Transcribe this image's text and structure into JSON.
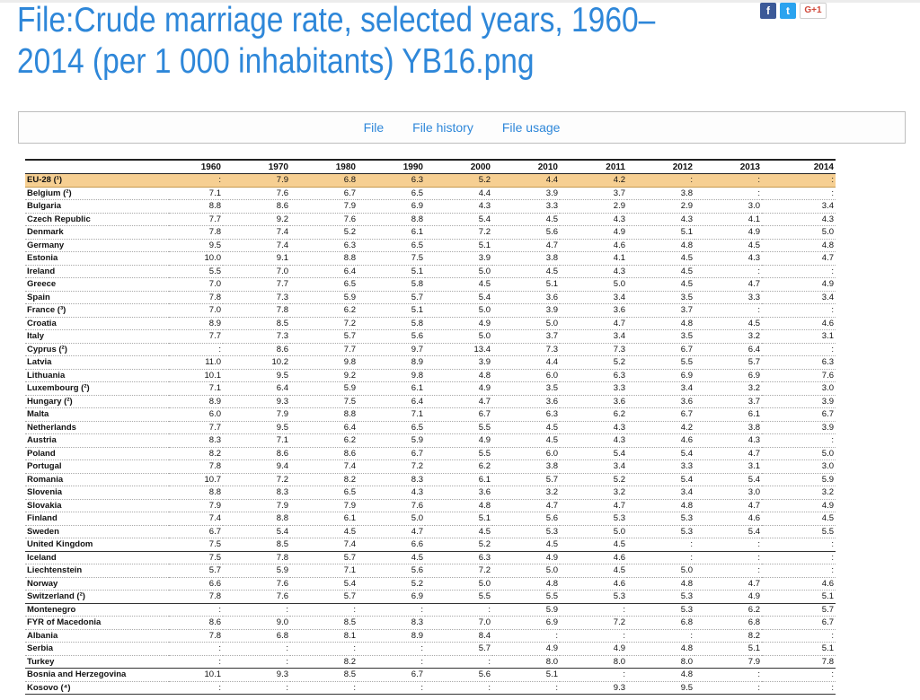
{
  "page": {
    "title": "File:Crude marriage rate, selected years, 1960–2014 (per 1 000 inhabitants) YB16.png",
    "title_color": "#2e87d9"
  },
  "share": {
    "facebook": "f",
    "twitter": "t",
    "gplus": "G+1"
  },
  "tabs": [
    "File",
    "File history",
    "File usage"
  ],
  "table": {
    "corner": "",
    "years": [
      "1960",
      "1970",
      "1980",
      "1990",
      "2000",
      "2010",
      "2011",
      "2012",
      "2013",
      "2014"
    ],
    "rows": [
      {
        "country": "EU-28 (¹)",
        "values": [
          ":",
          "7.9",
          "6.8",
          "6.3",
          "5.2",
          "4.4",
          "4.2",
          ":",
          ":",
          ":"
        ],
        "highlight": true
      },
      {
        "country": "Belgium (²)",
        "values": [
          "7.1",
          "7.6",
          "6.7",
          "6.5",
          "4.4",
          "3.9",
          "3.7",
          "3.8",
          ":",
          ":"
        ]
      },
      {
        "country": "Bulgaria",
        "values": [
          "8.8",
          "8.6",
          "7.9",
          "6.9",
          "4.3",
          "3.3",
          "2.9",
          "2.9",
          "3.0",
          "3.4"
        ]
      },
      {
        "country": "Czech Republic",
        "values": [
          "7.7",
          "9.2",
          "7.6",
          "8.8",
          "5.4",
          "4.5",
          "4.3",
          "4.3",
          "4.1",
          "4.3"
        ]
      },
      {
        "country": "Denmark",
        "values": [
          "7.8",
          "7.4",
          "5.2",
          "6.1",
          "7.2",
          "5.6",
          "4.9",
          "5.1",
          "4.9",
          "5.0"
        ]
      },
      {
        "country": "Germany",
        "values": [
          "9.5",
          "7.4",
          "6.3",
          "6.5",
          "5.1",
          "4.7",
          "4.6",
          "4.8",
          "4.5",
          "4.8"
        ]
      },
      {
        "country": "Estonia",
        "values": [
          "10.0",
          "9.1",
          "8.8",
          "7.5",
          "3.9",
          "3.8",
          "4.1",
          "4.5",
          "4.3",
          "4.7"
        ]
      },
      {
        "country": "Ireland",
        "values": [
          "5.5",
          "7.0",
          "6.4",
          "5.1",
          "5.0",
          "4.5",
          "4.3",
          "4.5",
          ":",
          ":"
        ]
      },
      {
        "country": "Greece",
        "values": [
          "7.0",
          "7.7",
          "6.5",
          "5.8",
          "4.5",
          "5.1",
          "5.0",
          "4.5",
          "4.7",
          "4.9"
        ]
      },
      {
        "country": "Spain",
        "values": [
          "7.8",
          "7.3",
          "5.9",
          "5.7",
          "5.4",
          "3.6",
          "3.4",
          "3.5",
          "3.3",
          "3.4"
        ]
      },
      {
        "country": "France (³)",
        "values": [
          "7.0",
          "7.8",
          "6.2",
          "5.1",
          "5.0",
          "3.9",
          "3.6",
          "3.7",
          ":",
          ":"
        ]
      },
      {
        "country": "Croatia",
        "values": [
          "8.9",
          "8.5",
          "7.2",
          "5.8",
          "4.9",
          "5.0",
          "4.7",
          "4.8",
          "4.5",
          "4.6"
        ]
      },
      {
        "country": "Italy",
        "values": [
          "7.7",
          "7.3",
          "5.7",
          "5.6",
          "5.0",
          "3.7",
          "3.4",
          "3.5",
          "3.2",
          "3.1"
        ]
      },
      {
        "country": "Cyprus (²)",
        "values": [
          ":",
          "8.6",
          "7.7",
          "9.7",
          "13.4",
          "7.3",
          "7.3",
          "6.7",
          "6.4",
          ":"
        ]
      },
      {
        "country": "Latvia",
        "values": [
          "11.0",
          "10.2",
          "9.8",
          "8.9",
          "3.9",
          "4.4",
          "5.2",
          "5.5",
          "5.7",
          "6.3"
        ]
      },
      {
        "country": "Lithuania",
        "values": [
          "10.1",
          "9.5",
          "9.2",
          "9.8",
          "4.8",
          "6.0",
          "6.3",
          "6.9",
          "6.9",
          "7.6"
        ]
      },
      {
        "country": "Luxembourg (²)",
        "values": [
          "7.1",
          "6.4",
          "5.9",
          "6.1",
          "4.9",
          "3.5",
          "3.3",
          "3.4",
          "3.2",
          "3.0"
        ]
      },
      {
        "country": "Hungary (²)",
        "values": [
          "8.9",
          "9.3",
          "7.5",
          "6.4",
          "4.7",
          "3.6",
          "3.6",
          "3.6",
          "3.7",
          "3.9"
        ]
      },
      {
        "country": "Malta",
        "values": [
          "6.0",
          "7.9",
          "8.8",
          "7.1",
          "6.7",
          "6.3",
          "6.2",
          "6.7",
          "6.1",
          "6.7"
        ]
      },
      {
        "country": "Netherlands",
        "values": [
          "7.7",
          "9.5",
          "6.4",
          "6.5",
          "5.5",
          "4.5",
          "4.3",
          "4.2",
          "3.8",
          "3.9"
        ]
      },
      {
        "country": "Austria",
        "values": [
          "8.3",
          "7.1",
          "6.2",
          "5.9",
          "4.9",
          "4.5",
          "4.3",
          "4.6",
          "4.3",
          ":"
        ]
      },
      {
        "country": "Poland",
        "values": [
          "8.2",
          "8.6",
          "8.6",
          "6.7",
          "5.5",
          "6.0",
          "5.4",
          "5.4",
          "4.7",
          "5.0"
        ]
      },
      {
        "country": "Portugal",
        "values": [
          "7.8",
          "9.4",
          "7.4",
          "7.2",
          "6.2",
          "3.8",
          "3.4",
          "3.3",
          "3.1",
          "3.0"
        ]
      },
      {
        "country": "Romania",
        "values": [
          "10.7",
          "7.2",
          "8.2",
          "8.3",
          "6.1",
          "5.7",
          "5.2",
          "5.4",
          "5.4",
          "5.9"
        ]
      },
      {
        "country": "Slovenia",
        "values": [
          "8.8",
          "8.3",
          "6.5",
          "4.3",
          "3.6",
          "3.2",
          "3.2",
          "3.4",
          "3.0",
          "3.2"
        ]
      },
      {
        "country": "Slovakia",
        "values": [
          "7.9",
          "7.9",
          "7.9",
          "7.6",
          "4.8",
          "4.7",
          "4.7",
          "4.8",
          "4.7",
          "4.9"
        ]
      },
      {
        "country": "Finland",
        "values": [
          "7.4",
          "8.8",
          "6.1",
          "5.0",
          "5.1",
          "5.6",
          "5.3",
          "5.3",
          "4.6",
          "4.5"
        ]
      },
      {
        "country": "Sweden",
        "values": [
          "6.7",
          "5.4",
          "4.5",
          "4.7",
          "4.5",
          "5.3",
          "5.0",
          "5.3",
          "5.4",
          "5.5"
        ]
      },
      {
        "country": "United Kingdom",
        "values": [
          "7.5",
          "8.5",
          "7.4",
          "6.6",
          "5.2",
          "4.5",
          "4.5",
          ":",
          ":",
          ":"
        ],
        "separator": true
      },
      {
        "country": "Iceland",
        "values": [
          "7.5",
          "7.8",
          "5.7",
          "4.5",
          "6.3",
          "4.9",
          "4.6",
          ":",
          ":",
          ":"
        ]
      },
      {
        "country": "Liechtenstein",
        "values": [
          "5.7",
          "5.9",
          "7.1",
          "5.6",
          "7.2",
          "5.0",
          "4.5",
          "5.0",
          ":",
          ":"
        ]
      },
      {
        "country": "Norway",
        "values": [
          "6.6",
          "7.6",
          "5.4",
          "5.2",
          "5.0",
          "4.8",
          "4.6",
          "4.8",
          "4.7",
          "4.6"
        ]
      },
      {
        "country": "Switzerland (²)",
        "values": [
          "7.8",
          "7.6",
          "5.7",
          "6.9",
          "5.5",
          "5.5",
          "5.3",
          "5.3",
          "4.9",
          "5.1"
        ],
        "separator": true
      },
      {
        "country": "Montenegro",
        "values": [
          ":",
          ":",
          ":",
          ":",
          ":",
          "5.9",
          ":",
          "5.3",
          "6.2",
          "5.7"
        ]
      },
      {
        "country": "FYR of Macedonia",
        "values": [
          "8.6",
          "9.0",
          "8.5",
          "8.3",
          "7.0",
          "6.9",
          "7.2",
          "6.8",
          "6.8",
          "6.7"
        ]
      },
      {
        "country": "Albania",
        "values": [
          "7.8",
          "6.8",
          "8.1",
          "8.9",
          "8.4",
          ":",
          ":",
          ":",
          "8.2",
          ":"
        ]
      },
      {
        "country": "Serbia",
        "values": [
          ":",
          ":",
          ":",
          ":",
          "5.7",
          "4.9",
          "4.9",
          "4.8",
          "5.1",
          "5.1"
        ]
      },
      {
        "country": "Turkey",
        "values": [
          ":",
          ":",
          "8.2",
          ":",
          ":",
          "8.0",
          "8.0",
          "8.0",
          "7.9",
          "7.8"
        ],
        "separator": true
      },
      {
        "country": "Bosnia and Herzegovina",
        "values": [
          "10.1",
          "9.3",
          "8.5",
          "6.7",
          "5.6",
          "5.1",
          ":",
          "4.8",
          ":",
          ":"
        ]
      },
      {
        "country": "Kosovo (⁴)",
        "values": [
          ":",
          ":",
          ":",
          ":",
          ":",
          ":",
          "9.3",
          "9.5",
          ":",
          ":"
        ]
      }
    ]
  }
}
